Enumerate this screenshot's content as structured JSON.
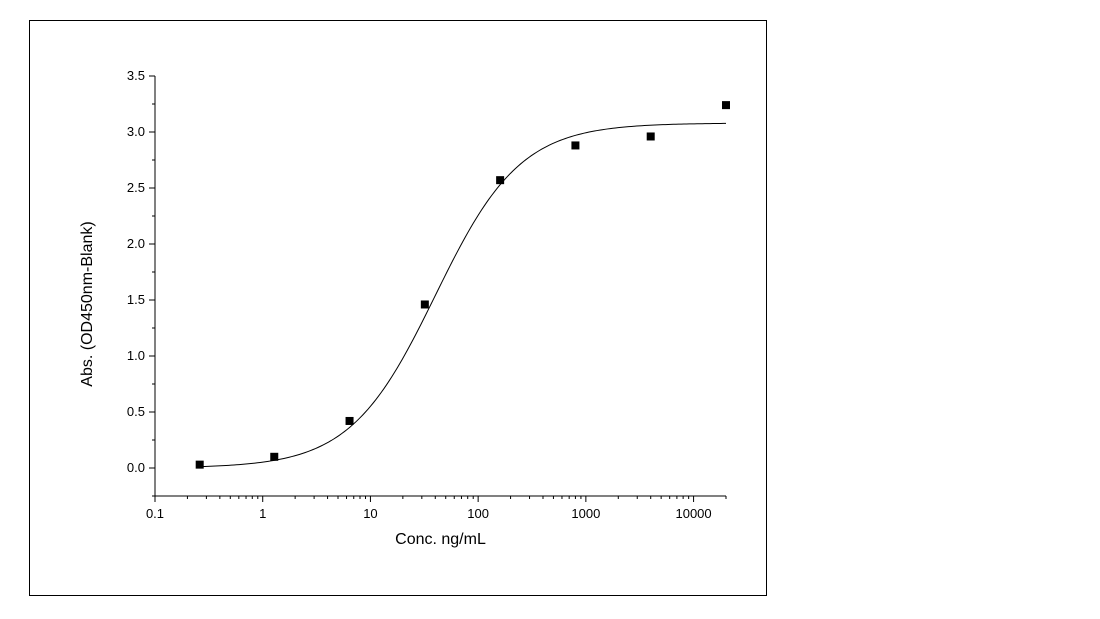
{
  "chart_data": {
    "type": "scatter",
    "title": "",
    "xlabel": "Conc. ng/mL",
    "ylabel": "Abs. (OD450nm-Blank)",
    "xscale": "log",
    "xlim": [
      0.1,
      20000
    ],
    "ylim": [
      -0.25,
      3.5
    ],
    "x_ticks": [
      0.1,
      1,
      10,
      100,
      1000,
      10000
    ],
    "x_tick_labels": [
      "0.1",
      "1",
      "10",
      "100",
      "1000",
      "10000"
    ],
    "y_ticks": [
      0.0,
      0.5,
      1.0,
      1.5,
      2.0,
      2.5,
      3.0,
      3.5
    ],
    "y_tick_labels": [
      "0.0",
      "0.5",
      "1.0",
      "1.5",
      "2.0",
      "2.5",
      "3.0",
      "3.5"
    ],
    "grid": false,
    "legend": "none",
    "series": [
      {
        "marker": "square",
        "x": [
          0.26,
          1.28,
          6.4,
          32,
          160,
          800,
          4000,
          20000
        ],
        "y": [
          0.03,
          0.1,
          0.42,
          1.46,
          2.57,
          2.88,
          2.96,
          3.24
        ]
      }
    ],
    "fit_curve": {
      "type": "4-parameter logistic",
      "bottom": 0.0,
      "top": 3.08,
      "ec50": 40,
      "hill": 1.1
    },
    "colors": {
      "marker": "#000000",
      "curve": "#000000",
      "axes": "#000000"
    }
  }
}
